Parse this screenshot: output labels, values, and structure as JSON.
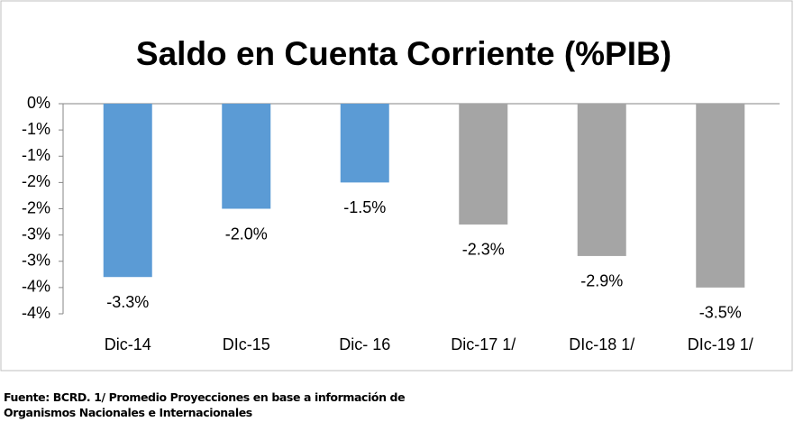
{
  "chart_data": {
    "type": "bar",
    "title": "Saldo en Cuenta Corriente (%PIB)",
    "categories": [
      "Dic-14",
      "DIc-15",
      "Dic- 16",
      "Dic-17 1/",
      "DIc-18 1/",
      "DIc-19 1/"
    ],
    "values": [
      -3.3,
      -2.0,
      -1.5,
      -2.3,
      -2.9,
      -3.5
    ],
    "value_labels": [
      "-3.3%",
      "-2.0%",
      "-1.5%",
      "-2.3%",
      "-2.9%",
      "-3.5%"
    ],
    "colors": [
      "#5b9bd5",
      "#5b9bd5",
      "#5b9bd5",
      "#a5a5a5",
      "#a5a5a5",
      "#a5a5a5"
    ],
    "ylim": [
      -4,
      0
    ],
    "yticks": [
      {
        "value": 0,
        "label": "0%"
      },
      {
        "value": -0.5,
        "label": "-1%"
      },
      {
        "value": -1,
        "label": "-1%"
      },
      {
        "value": -1.5,
        "label": "-2%"
      },
      {
        "value": -2,
        "label": "-2%"
      },
      {
        "value": -2.5,
        "label": "-3%"
      },
      {
        "value": -3,
        "label": "-3%"
      },
      {
        "value": -3.5,
        "label": "-4%"
      },
      {
        "value": -4,
        "label": "-4%"
      }
    ],
    "grid": false,
    "note": "Fuente: BCRD. 1/ Promedio Proyecciones en base a información de Organismos Nacionales e Internacionales"
  }
}
